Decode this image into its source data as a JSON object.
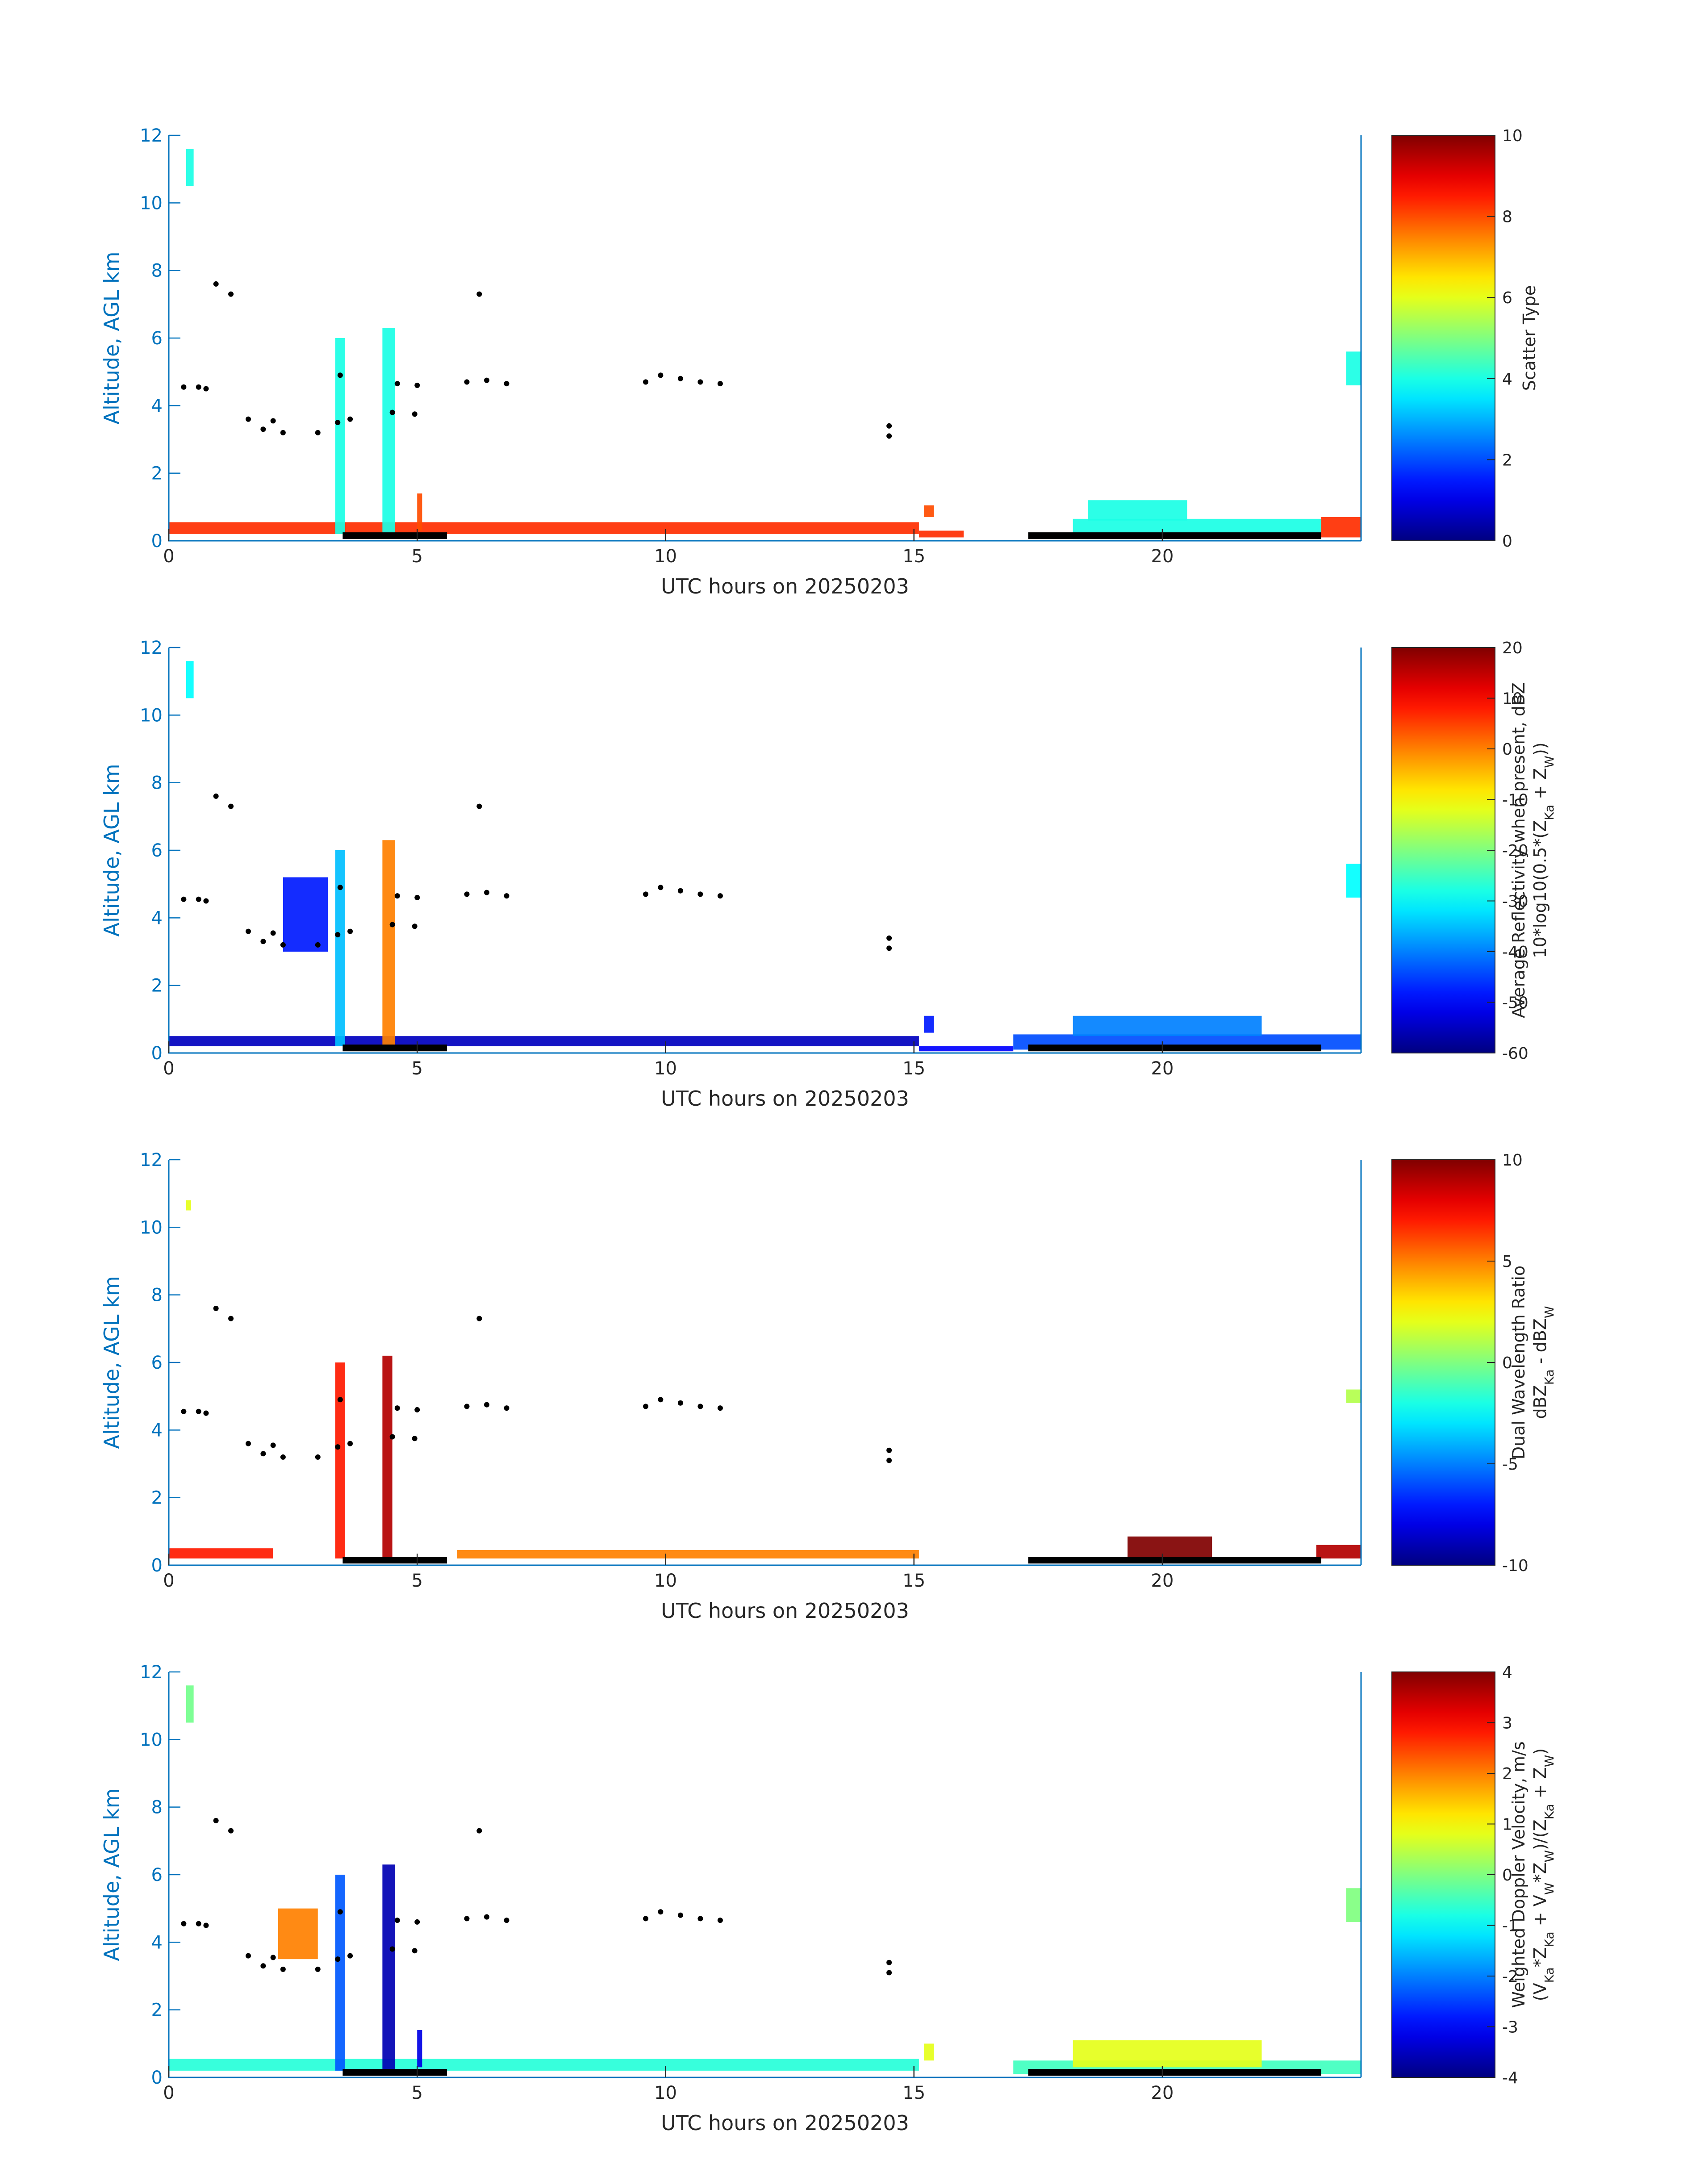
{
  "figure": {
    "date": "20250203"
  },
  "colors": {
    "axis": "#0072BD",
    "text": "#262626",
    "marker": "#000000"
  },
  "chart_data": [
    {
      "type": "heatmap",
      "variable": "scatter_type",
      "xlabel": "UTC hours on 20250203",
      "ylabel": "Altitude, AGL km",
      "xlim": [
        0,
        24
      ],
      "ylim": [
        0,
        12
      ],
      "xticks": [
        0,
        5,
        10,
        15,
        20
      ],
      "yticks": [
        0,
        2,
        4,
        6,
        8,
        10,
        12
      ],
      "colorbar": {
        "label_lines": [
          "Scatter Type"
        ],
        "range": [
          0,
          10
        ],
        "ticks": [
          0,
          2,
          4,
          6,
          8,
          10
        ]
      },
      "cloud_base_km": [
        [
          0.3,
          4.55
        ],
        [
          0.6,
          4.55
        ],
        [
          0.75,
          4.5
        ],
        [
          1.6,
          3.6
        ],
        [
          1.9,
          3.3
        ],
        [
          2.1,
          3.55
        ],
        [
          2.3,
          3.2
        ],
        [
          3.0,
          3.2
        ],
        [
          3.4,
          3.5
        ],
        [
          3.45,
          4.9
        ],
        [
          3.65,
          3.6
        ],
        [
          4.6,
          4.65
        ],
        [
          5.0,
          4.6
        ],
        [
          6.0,
          4.7
        ],
        [
          6.4,
          4.75
        ],
        [
          6.8,
          4.65
        ],
        [
          9.6,
          4.7
        ],
        [
          9.9,
          4.9
        ],
        [
          10.3,
          4.8
        ],
        [
          10.7,
          4.7
        ],
        [
          11.1,
          4.65
        ],
        [
          14.5,
          3.1
        ],
        [
          14.5,
          3.4
        ],
        [
          0.95,
          7.6
        ],
        [
          1.25,
          7.3
        ],
        [
          6.25,
          7.3
        ],
        [
          4.5,
          3.8
        ],
        [
          4.95,
          3.75
        ]
      ],
      "regions": [
        {
          "x0": 0.0,
          "x1": 15.1,
          "y0": 0.2,
          "y1": 0.55,
          "value": 8.3
        },
        {
          "x0": 15.1,
          "x1": 16.0,
          "y0": 0.1,
          "y1": 0.3,
          "value": 8.3
        },
        {
          "x0": 15.2,
          "x1": 15.4,
          "y0": 0.7,
          "y1": 1.05,
          "value": 8.0
        },
        {
          "x0": 23.2,
          "x1": 24.0,
          "y0": 0.1,
          "y1": 0.7,
          "value": 8.3
        },
        {
          "x0": 3.35,
          "x1": 3.55,
          "y0": 0.2,
          "y1": 6.0,
          "value": 4.0
        },
        {
          "x0": 4.3,
          "x1": 4.55,
          "y0": 0.2,
          "y1": 6.3,
          "value": 4.0
        },
        {
          "x0": 5.0,
          "x1": 5.1,
          "y0": 0.3,
          "y1": 1.4,
          "value": 8.0
        },
        {
          "x0": 18.2,
          "x1": 23.2,
          "y0": 0.05,
          "y1": 0.65,
          "value": 4.0
        },
        {
          "x0": 18.5,
          "x1": 20.5,
          "y0": 0.6,
          "y1": 1.2,
          "value": 4.0
        },
        {
          "x0": 0.35,
          "x1": 0.5,
          "y0": 10.5,
          "y1": 11.6,
          "value": 4.0
        },
        {
          "x0": 23.7,
          "x1": 24.0,
          "y0": 4.6,
          "y1": 5.6,
          "value": 4.0
        }
      ]
    },
    {
      "type": "heatmap",
      "variable": "average_reflectivity",
      "xlabel": "UTC hours on 20250203",
      "ylabel": "Altitude, AGL km",
      "xlim": [
        0,
        24
      ],
      "ylim": [
        0,
        12
      ],
      "xticks": [
        0,
        5,
        10,
        15,
        20
      ],
      "yticks": [
        0,
        2,
        4,
        6,
        8,
        10,
        12
      ],
      "colorbar": {
        "label_lines": [
          "Average Reflectivity when present, dBZ",
          "10*log10(0.5*(Z_Ka + Z_W))"
        ],
        "range": [
          -60,
          20
        ],
        "ticks": [
          -60,
          -50,
          -40,
          -30,
          -20,
          -10,
          0,
          10,
          20
        ]
      },
      "cloud_base_km": [
        [
          0.3,
          4.55
        ],
        [
          0.6,
          4.55
        ],
        [
          0.75,
          4.5
        ],
        [
          1.6,
          3.6
        ],
        [
          1.9,
          3.3
        ],
        [
          2.1,
          3.55
        ],
        [
          2.3,
          3.2
        ],
        [
          3.0,
          3.2
        ],
        [
          3.4,
          3.5
        ],
        [
          3.45,
          4.9
        ],
        [
          3.65,
          3.6
        ],
        [
          4.6,
          4.65
        ],
        [
          5.0,
          4.6
        ],
        [
          6.0,
          4.7
        ],
        [
          6.4,
          4.75
        ],
        [
          6.8,
          4.65
        ],
        [
          9.6,
          4.7
        ],
        [
          9.9,
          4.9
        ],
        [
          10.3,
          4.8
        ],
        [
          10.7,
          4.7
        ],
        [
          11.1,
          4.65
        ],
        [
          14.5,
          3.1
        ],
        [
          14.5,
          3.4
        ],
        [
          0.95,
          7.6
        ],
        [
          1.25,
          7.3
        ],
        [
          6.25,
          7.3
        ],
        [
          4.5,
          3.8
        ],
        [
          4.95,
          3.75
        ]
      ],
      "regions": [
        {
          "x0": 0.0,
          "x1": 15.1,
          "y0": 0.2,
          "y1": 0.5,
          "value": -55
        },
        {
          "x0": 15.1,
          "x1": 17.0,
          "y0": 0.05,
          "y1": 0.2,
          "value": -50
        },
        {
          "x0": 17.0,
          "x1": 24.0,
          "y0": 0.1,
          "y1": 0.55,
          "value": -44
        },
        {
          "x0": 18.2,
          "x1": 22.0,
          "y0": 0.5,
          "y1": 1.1,
          "value": -40
        },
        {
          "x0": 3.35,
          "x1": 3.55,
          "y0": 0.2,
          "y1": 6.0,
          "value": -35
        },
        {
          "x0": 4.3,
          "x1": 4.55,
          "y0": 0.2,
          "y1": 6.3,
          "value": 0
        },
        {
          "x0": 2.3,
          "x1": 3.2,
          "y0": 3.0,
          "y1": 5.2,
          "value": -48
        },
        {
          "x0": 15.2,
          "x1": 15.4,
          "y0": 0.6,
          "y1": 1.1,
          "value": -48
        },
        {
          "x0": 0.35,
          "x1": 0.5,
          "y0": 10.5,
          "y1": 11.6,
          "value": -30
        },
        {
          "x0": 23.7,
          "x1": 24.0,
          "y0": 4.6,
          "y1": 5.6,
          "value": -30
        }
      ]
    },
    {
      "type": "heatmap",
      "variable": "dual_wavelength_ratio",
      "xlabel": "UTC hours on 20250203",
      "ylabel": "Altitude, AGL km",
      "xlim": [
        0,
        24
      ],
      "ylim": [
        0,
        12
      ],
      "xticks": [
        0,
        5,
        10,
        15,
        20
      ],
      "yticks": [
        0,
        2,
        4,
        6,
        8,
        10,
        12
      ],
      "colorbar": {
        "label_lines": [
          "Dual Wavelength Ratio",
          "dBZ_Ka - dBZ_W"
        ],
        "range": [
          -10,
          10
        ],
        "ticks": [
          -10,
          -5,
          0,
          5,
          10
        ]
      },
      "cloud_base_km": [
        [
          0.3,
          4.55
        ],
        [
          0.6,
          4.55
        ],
        [
          0.75,
          4.5
        ],
        [
          1.6,
          3.6
        ],
        [
          1.9,
          3.3
        ],
        [
          2.1,
          3.55
        ],
        [
          2.3,
          3.2
        ],
        [
          3.0,
          3.2
        ],
        [
          3.4,
          3.5
        ],
        [
          3.45,
          4.9
        ],
        [
          3.65,
          3.6
        ],
        [
          4.6,
          4.65
        ],
        [
          5.0,
          4.6
        ],
        [
          6.0,
          4.7
        ],
        [
          6.4,
          4.75
        ],
        [
          6.8,
          4.65
        ],
        [
          9.6,
          4.7
        ],
        [
          9.9,
          4.9
        ],
        [
          10.3,
          4.8
        ],
        [
          10.7,
          4.7
        ],
        [
          11.1,
          4.65
        ],
        [
          14.5,
          3.1
        ],
        [
          14.5,
          3.4
        ],
        [
          0.95,
          7.6
        ],
        [
          1.25,
          7.3
        ],
        [
          6.25,
          7.3
        ],
        [
          4.5,
          3.8
        ],
        [
          4.95,
          3.75
        ]
      ],
      "regions": [
        {
          "x0": 0.0,
          "x1": 2.1,
          "y0": 0.2,
          "y1": 0.5,
          "value": 7
        },
        {
          "x0": 5.8,
          "x1": 15.1,
          "y0": 0.2,
          "y1": 0.45,
          "value": 5
        },
        {
          "x0": 19.3,
          "x1": 21.0,
          "y0": 0.2,
          "y1": 0.85,
          "value": 10
        },
        {
          "x0": 23.1,
          "x1": 24.0,
          "y0": 0.2,
          "y1": 0.6,
          "value": 9
        },
        {
          "x0": 3.35,
          "x1": 3.55,
          "y0": 0.2,
          "y1": 6.0,
          "value": 7
        },
        {
          "x0": 4.3,
          "x1": 4.5,
          "y0": 0.2,
          "y1": 6.2,
          "value": 9
        },
        {
          "x0": 0.35,
          "x1": 0.45,
          "y0": 10.5,
          "y1": 10.8,
          "value": 2
        },
        {
          "x0": 23.7,
          "x1": 24.0,
          "y0": 4.8,
          "y1": 5.2,
          "value": 1
        }
      ]
    },
    {
      "type": "heatmap",
      "variable": "weighted_doppler_velocity",
      "xlabel": "UTC hours on 20250203",
      "ylabel": "Altitude, AGL km",
      "xlim": [
        0,
        24
      ],
      "ylim": [
        0,
        12
      ],
      "xticks": [
        0,
        5,
        10,
        15,
        20
      ],
      "yticks": [
        0,
        2,
        4,
        6,
        8,
        10,
        12
      ],
      "colorbar": {
        "label_lines": [
          "Weighted Doppler Velocity, m/s",
          "(V_Ka*Z_Ka + V_W*Z_W)/(Z_Ka + Z_W)"
        ],
        "range": [
          -4,
          4
        ],
        "ticks": [
          -4,
          -3,
          -2,
          -1,
          0,
          1,
          2,
          3,
          4
        ]
      },
      "cloud_base_km": [
        [
          0.3,
          4.55
        ],
        [
          0.6,
          4.55
        ],
        [
          0.75,
          4.5
        ],
        [
          1.6,
          3.6
        ],
        [
          1.9,
          3.3
        ],
        [
          2.1,
          3.55
        ],
        [
          2.3,
          3.2
        ],
        [
          3.0,
          3.2
        ],
        [
          3.4,
          3.5
        ],
        [
          3.45,
          4.9
        ],
        [
          3.65,
          3.6
        ],
        [
          4.6,
          4.65
        ],
        [
          5.0,
          4.6
        ],
        [
          6.0,
          4.7
        ],
        [
          6.4,
          4.75
        ],
        [
          6.8,
          4.65
        ],
        [
          9.6,
          4.7
        ],
        [
          9.9,
          4.9
        ],
        [
          10.3,
          4.8
        ],
        [
          10.7,
          4.7
        ],
        [
          11.1,
          4.65
        ],
        [
          14.5,
          3.1
        ],
        [
          14.5,
          3.4
        ],
        [
          0.95,
          7.6
        ],
        [
          1.25,
          7.3
        ],
        [
          6.25,
          7.3
        ],
        [
          4.5,
          3.8
        ],
        [
          4.95,
          3.75
        ]
      ],
      "regions": [
        {
          "x0": 0.0,
          "x1": 15.1,
          "y0": 0.2,
          "y1": 0.55,
          "value": -0.7
        },
        {
          "x0": 17.0,
          "x1": 24.0,
          "y0": 0.1,
          "y1": 0.5,
          "value": -0.5
        },
        {
          "x0": 18.2,
          "x1": 22.0,
          "y0": 0.3,
          "y1": 1.1,
          "value": 0.8
        },
        {
          "x0": 3.35,
          "x1": 3.55,
          "y0": 0.2,
          "y1": 6.0,
          "value": -2.3
        },
        {
          "x0": 4.3,
          "x1": 4.55,
          "y0": 0.2,
          "y1": 6.3,
          "value": -3.6
        },
        {
          "x0": 5.0,
          "x1": 5.1,
          "y0": 0.3,
          "y1": 1.4,
          "value": -3.2
        },
        {
          "x0": 2.2,
          "x1": 3.0,
          "y0": 3.5,
          "y1": 5.0,
          "value": 2.0
        },
        {
          "x0": 15.2,
          "x1": 15.4,
          "y0": 0.5,
          "y1": 1.0,
          "value": 0.8
        },
        {
          "x0": 0.35,
          "x1": 0.5,
          "y0": 10.5,
          "y1": 11.6,
          "value": -0.1
        },
        {
          "x0": 23.7,
          "x1": 24.0,
          "y0": 4.6,
          "y1": 5.6,
          "value": 0.0
        }
      ]
    }
  ]
}
